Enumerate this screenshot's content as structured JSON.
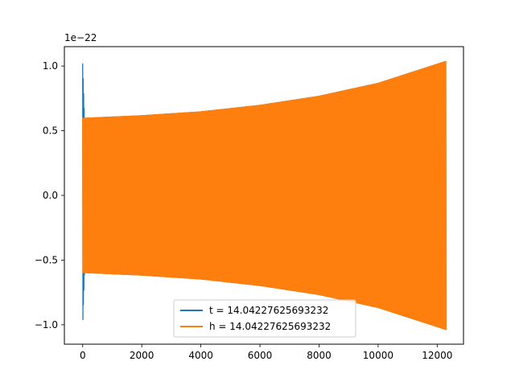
{
  "chart_data": {
    "type": "line",
    "title": "",
    "xlabel": "",
    "ylabel": "",
    "offset_label": "1e−22",
    "xlim": [
      -620,
      12890
    ],
    "ylim": [
      -1.15,
      1.15
    ],
    "x_ticks": [
      0,
      2000,
      4000,
      6000,
      8000,
      10000,
      12000
    ],
    "x_tick_labels": [
      "0",
      "2000",
      "4000",
      "6000",
      "8000",
      "10000",
      "12000"
    ],
    "y_ticks": [
      -1.0,
      -0.5,
      0.0,
      0.5,
      1.0
    ],
    "y_tick_labels": [
      "−1.0",
      "−0.5",
      "0.0",
      "0.5",
      "1.0"
    ],
    "grid": false,
    "legend_position": "bottom-center",
    "series": [
      {
        "name": "t = 14.04227625693232",
        "color": "#1f77b4",
        "description": "oscillation, amplitude spike ~1.02 near x=0, then ~0.6 growing to ~1.04 at x~12300",
        "x_range": [
          0,
          12300
        ],
        "envelope": [
          {
            "x": 0,
            "amplitude": 1.02
          },
          {
            "x": 60,
            "amplitude": 0.6
          },
          {
            "x": 2000,
            "amplitude": 0.62
          },
          {
            "x": 4000,
            "amplitude": 0.65
          },
          {
            "x": 6000,
            "amplitude": 0.7
          },
          {
            "x": 8000,
            "amplitude": 0.77
          },
          {
            "x": 10000,
            "amplitude": 0.87
          },
          {
            "x": 12300,
            "amplitude": 1.04
          }
        ]
      },
      {
        "name": "h = 14.04227625693232",
        "color": "#ff7f0e",
        "description": "oscillation, amplitude ~0.6 growing to ~1.04 at x~12300",
        "x_range": [
          0,
          12300
        ],
        "envelope": [
          {
            "x": 0,
            "amplitude": 0.6
          },
          {
            "x": 2000,
            "amplitude": 0.62
          },
          {
            "x": 4000,
            "amplitude": 0.65
          },
          {
            "x": 6000,
            "amplitude": 0.7
          },
          {
            "x": 8000,
            "amplitude": 0.77
          },
          {
            "x": 10000,
            "amplitude": 0.87
          },
          {
            "x": 12300,
            "amplitude": 1.04
          }
        ]
      }
    ]
  }
}
